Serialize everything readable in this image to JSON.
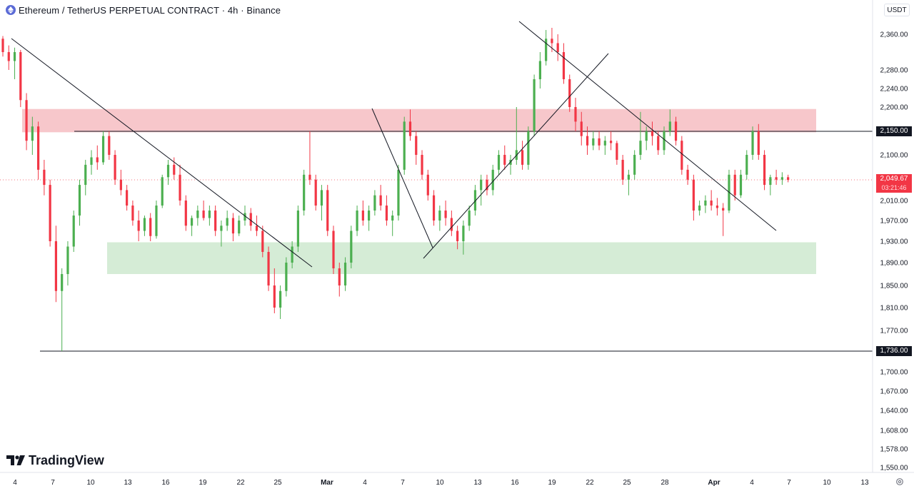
{
  "header": {
    "title": "Ethereum / TetherUS PERPETUAL CONTRACT · 4h · Binance",
    "icon": "ethereum-icon"
  },
  "toolbar": {
    "currency_label": "USDT"
  },
  "logo": {
    "text": "TradingView",
    "icon": "tradingview-logo-icon"
  },
  "price_scale": {
    "ticks": [
      "2,360.00",
      "2,280.00",
      "2,240.00",
      "2,200.00",
      "2,100.00",
      "2,010.00",
      "1,970.00",
      "1,930.00",
      "1,890.00",
      "1,850.00",
      "1,810.00",
      "1,770.00",
      "1,700.00",
      "1,670.00",
      "1,640.00",
      "1,608.00",
      "1,578.00",
      "1,550.00"
    ],
    "tick_values": [
      2360,
      2280,
      2240,
      2200,
      2100,
      2010,
      1970,
      1930,
      1890,
      1850,
      1810,
      1770,
      1700,
      1670,
      1640,
      1608,
      1578,
      1550
    ],
    "badge_resistance": "2,150.00",
    "badge_support": "1,736.00",
    "current_price": "2,049.67",
    "countdown": "03:21:46"
  },
  "time_scale": {
    "labels": [
      "4",
      "7",
      "10",
      "13",
      "16",
      "19",
      "22",
      "25",
      "Mar",
      "4",
      "7",
      "10",
      "13",
      "16",
      "19",
      "22",
      "25",
      "28",
      "Apr",
      "4",
      "7",
      "10",
      "13"
    ],
    "bold_labels": [
      "Mar",
      "Apr"
    ]
  },
  "colors": {
    "up": "#26a69a",
    "up_candle": "#4caf50",
    "down": "#f23645",
    "resistance_zone": "#f7c7cb",
    "support_zone": "#d5ecd6",
    "line": "#131722",
    "current_price_line": "#f23645",
    "axis_text": "#131722"
  },
  "chart_data": {
    "type": "candlestick",
    "symbol": "ETHUSDT.P",
    "timeframe": "4h",
    "exchange": "Binance",
    "price_range": [
      1540,
      2375
    ],
    "current_price": 2049.67,
    "horizontal_levels": [
      2150.0,
      1736.0
    ],
    "zones": [
      {
        "name": "resistance",
        "from": 2148,
        "to": 2196
      },
      {
        "name": "support",
        "from": 1870,
        "to": 1928
      }
    ],
    "trendlines": [
      {
        "name": "descending-1",
        "from": {
          "date": "Feb 4",
          "price": 2345
        },
        "to": {
          "date": "Mar 1",
          "price": 1885
        }
      },
      {
        "name": "descending-2",
        "from": {
          "date": "Mar 5",
          "price": 2195
        },
        "to": {
          "date": "Mar 9",
          "price": 1915
        }
      },
      {
        "name": "ascending",
        "from": {
          "date": "Mar 9",
          "price": 1900
        },
        "to": {
          "date": "Mar 23",
          "price": 2330
        }
      },
      {
        "name": "descending-3",
        "from": {
          "date": "Mar 17",
          "price": 2380
        },
        "to": {
          "date": "Apr 5",
          "price": 1955
        }
      }
    ],
    "ohlc": [
      [
        2350,
        2356,
        2310,
        2320
      ],
      [
        2320,
        2335,
        2280,
        2300
      ],
      [
        2300,
        2330,
        2260,
        2320
      ],
      [
        2320,
        2325,
        2200,
        2215
      ],
      [
        2215,
        2230,
        2110,
        2130
      ],
      [
        2130,
        2180,
        2100,
        2160
      ],
      [
        2160,
        2170,
        2050,
        2070
      ],
      [
        2070,
        2090,
        2020,
        2040
      ],
      [
        2040,
        2050,
        1920,
        1930
      ],
      [
        1930,
        1960,
        1820,
        1840
      ],
      [
        1840,
        1880,
        1736,
        1870
      ],
      [
        1870,
        1930,
        1850,
        1920
      ],
      [
        1920,
        1990,
        1910,
        1980
      ],
      [
        1980,
        2050,
        1960,
        2040
      ],
      [
        2040,
        2090,
        2020,
        2080
      ],
      [
        2080,
        2110,
        2060,
        2095
      ],
      [
        2095,
        2120,
        2070,
        2085
      ],
      [
        2085,
        2150,
        2080,
        2140
      ],
      [
        2140,
        2150,
        2090,
        2100
      ],
      [
        2100,
        2110,
        2040,
        2050
      ],
      [
        2050,
        2070,
        2020,
        2030
      ],
      [
        2030,
        2040,
        1990,
        2000
      ],
      [
        2000,
        2010,
        1960,
        1970
      ],
      [
        1970,
        1990,
        1930,
        1950
      ],
      [
        1950,
        1980,
        1940,
        1975
      ],
      [
        1975,
        1985,
        1930,
        1940
      ],
      [
        1940,
        2010,
        1935,
        2000
      ],
      [
        2000,
        2060,
        1995,
        2055
      ],
      [
        2055,
        2090,
        2040,
        2080
      ],
      [
        2080,
        2095,
        2050,
        2060
      ],
      [
        2060,
        2080,
        2000,
        2010
      ],
      [
        2010,
        2020,
        1950,
        1960
      ],
      [
        1960,
        1980,
        1940,
        1975
      ],
      [
        1975,
        2000,
        1960,
        1990
      ],
      [
        1990,
        2010,
        1970,
        1975
      ],
      [
        1975,
        2000,
        1960,
        1990
      ],
      [
        1990,
        2000,
        1940,
        1950
      ],
      [
        1950,
        1970,
        1920,
        1960
      ],
      [
        1960,
        1990,
        1950,
        1975
      ],
      [
        1975,
        1985,
        1930,
        1945
      ],
      [
        1945,
        1980,
        1940,
        1970
      ],
      [
        1970,
        2000,
        1960,
        1985
      ],
      [
        1985,
        1995,
        1950,
        1960
      ],
      [
        1960,
        1980,
        1940,
        1950
      ],
      [
        1950,
        1960,
        1900,
        1910
      ],
      [
        1910,
        1920,
        1840,
        1850
      ],
      [
        1850,
        1880,
        1800,
        1810
      ],
      [
        1810,
        1850,
        1790,
        1840
      ],
      [
        1840,
        1900,
        1830,
        1890
      ],
      [
        1890,
        1930,
        1880,
        1920
      ],
      [
        1920,
        2000,
        1910,
        1990
      ],
      [
        1990,
        2070,
        1980,
        2060
      ],
      [
        2060,
        2150,
        2040,
        2050
      ],
      [
        2050,
        2060,
        1990,
        2000
      ],
      [
        2000,
        2040,
        1970,
        2030
      ],
      [
        2030,
        2040,
        1940,
        1950
      ],
      [
        1950,
        1960,
        1870,
        1880
      ],
      [
        1880,
        1890,
        1830,
        1850
      ],
      [
        1850,
        1900,
        1840,
        1890
      ],
      [
        1890,
        1960,
        1880,
        1950
      ],
      [
        1950,
        2000,
        1940,
        1990
      ],
      [
        1990,
        2010,
        1960,
        1970
      ],
      [
        1970,
        2000,
        1950,
        1990
      ],
      [
        1990,
        2030,
        1980,
        2020
      ],
      [
        2020,
        2040,
        1990,
        2000
      ],
      [
        2000,
        2020,
        1960,
        1970
      ],
      [
        1970,
        1990,
        1940,
        1980
      ],
      [
        1980,
        2080,
        1970,
        2070
      ],
      [
        2070,
        2180,
        2060,
        2170
      ],
      [
        2170,
        2195,
        2130,
        2140
      ],
      [
        2140,
        2150,
        2080,
        2100
      ],
      [
        2100,
        2110,
        2050,
        2060
      ],
      [
        2060,
        2070,
        2010,
        2020
      ],
      [
        2020,
        2030,
        1960,
        1970
      ],
      [
        1970,
        2000,
        1950,
        1990
      ],
      [
        1990,
        2010,
        1960,
        1975
      ],
      [
        1975,
        1990,
        1940,
        1950
      ],
      [
        1950,
        1960,
        1915,
        1930
      ],
      [
        1930,
        1970,
        1905,
        1960
      ],
      [
        1960,
        2000,
        1950,
        1990
      ],
      [
        1990,
        2040,
        1980,
        2030
      ],
      [
        2030,
        2060,
        2000,
        2050
      ],
      [
        2050,
        2060,
        2020,
        2030
      ],
      [
        2030,
        2080,
        2020,
        2070
      ],
      [
        2070,
        2110,
        2060,
        2100
      ],
      [
        2100,
        2120,
        2070,
        2080
      ],
      [
        2080,
        2100,
        2060,
        2090
      ],
      [
        2090,
        2200,
        2080,
        2110
      ],
      [
        2110,
        2130,
        2070,
        2080
      ],
      [
        2080,
        2160,
        2070,
        2150
      ],
      [
        2150,
        2270,
        2140,
        2260
      ],
      [
        2260,
        2320,
        2240,
        2300
      ],
      [
        2300,
        2370,
        2290,
        2350
      ],
      [
        2350,
        2375,
        2320,
        2340
      ],
      [
        2340,
        2360,
        2300,
        2320
      ],
      [
        2320,
        2340,
        2250,
        2260
      ],
      [
        2260,
        2270,
        2190,
        2200
      ],
      [
        2200,
        2220,
        2150,
        2170
      ],
      [
        2170,
        2190,
        2120,
        2140
      ],
      [
        2140,
        2160,
        2100,
        2120
      ],
      [
        2120,
        2150,
        2110,
        2135
      ],
      [
        2135,
        2150,
        2110,
        2120
      ],
      [
        2120,
        2140,
        2100,
        2130
      ],
      [
        2130,
        2150,
        2110,
        2125
      ],
      [
        2125,
        2130,
        2080,
        2090
      ],
      [
        2090,
        2100,
        2040,
        2050
      ],
      [
        2050,
        2070,
        2020,
        2060
      ],
      [
        2060,
        2110,
        2050,
        2100
      ],
      [
        2100,
        2190,
        2090,
        2130
      ],
      [
        2130,
        2160,
        2110,
        2150
      ],
      [
        2150,
        2170,
        2120,
        2140
      ],
      [
        2140,
        2150,
        2100,
        2110
      ],
      [
        2110,
        2160,
        2100,
        2150
      ],
      [
        2150,
        2195,
        2140,
        2170
      ],
      [
        2170,
        2180,
        2120,
        2130
      ],
      [
        2130,
        2140,
        2060,
        2070
      ],
      [
        2070,
        2080,
        2040,
        2050
      ],
      [
        2050,
        2060,
        1970,
        1990
      ],
      [
        1990,
        2010,
        1980,
        2000
      ],
      [
        2000,
        2020,
        1985,
        2010
      ],
      [
        2010,
        2030,
        1990,
        2000
      ],
      [
        2000,
        2015,
        1980,
        1995
      ],
      [
        1995,
        2005,
        1940,
        1990
      ],
      [
        1990,
        2070,
        1985,
        2060
      ],
      [
        2060,
        2070,
        2010,
        2020
      ],
      [
        2020,
        2070,
        2015,
        2060
      ],
      [
        2060,
        2110,
        2050,
        2100
      ],
      [
        2100,
        2160,
        2090,
        2150
      ],
      [
        2150,
        2165,
        2090,
        2100
      ],
      [
        2100,
        2110,
        2030,
        2040
      ],
      [
        2040,
        2060,
        2020,
        2055
      ],
      [
        2055,
        2070,
        2040,
        2050
      ],
      [
        2050,
        2065,
        2040,
        2055
      ],
      [
        2055,
        2060,
        2045,
        2049.67
      ]
    ]
  }
}
